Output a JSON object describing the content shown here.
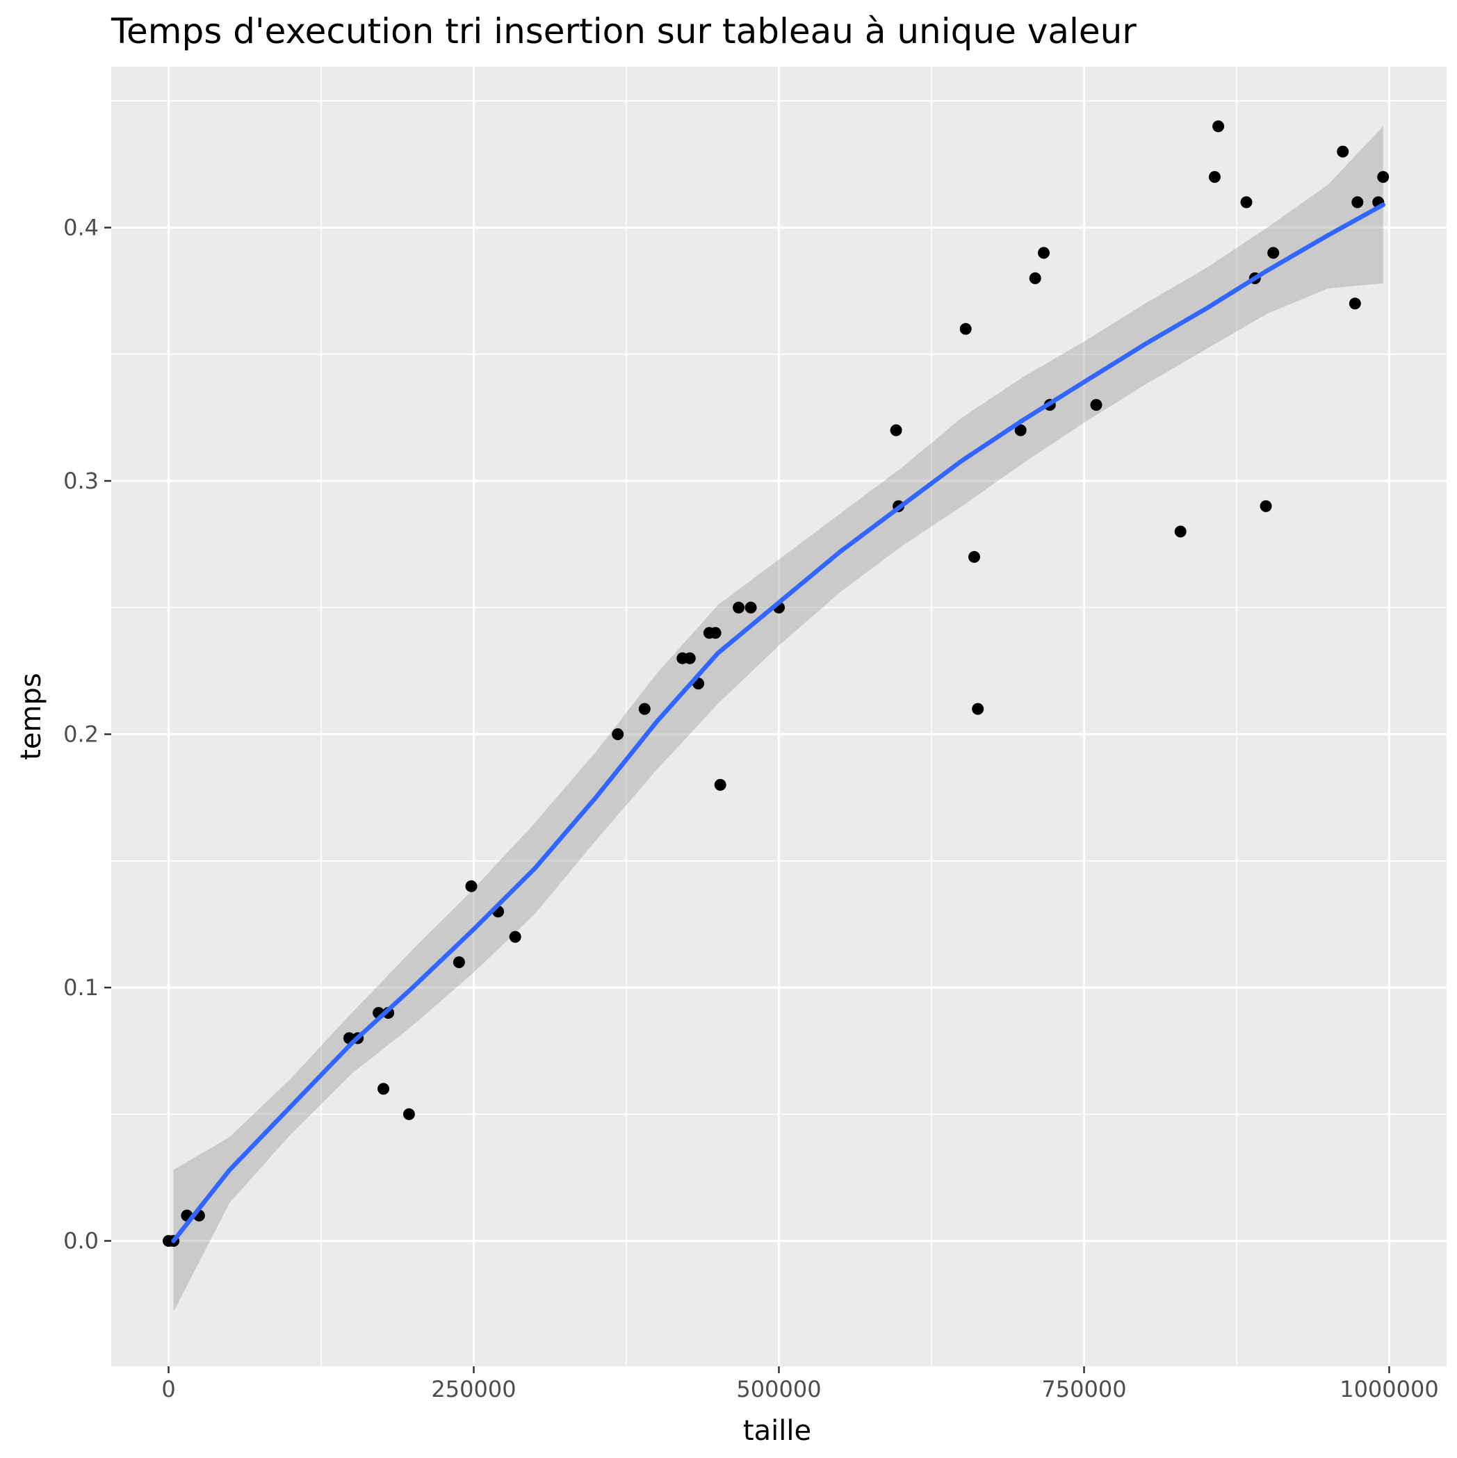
{
  "chart_data": {
    "type": "scatter",
    "title": "Temps d'execution tri insertion sur tableau à unique valeur",
    "xlabel": "taille",
    "ylabel": "temps",
    "xlim": [
      -47000,
      1047000
    ],
    "ylim": [
      -0.0495,
      0.4635
    ],
    "x_ticks": [
      0,
      250000,
      500000,
      750000,
      1000000
    ],
    "x_tick_labels": [
      "0",
      "250000",
      "500000",
      "750000",
      "1000000"
    ],
    "y_ticks": [
      0.0,
      0.1,
      0.2,
      0.3,
      0.4
    ],
    "y_tick_labels": [
      "0.0",
      "0.1",
      "0.2",
      "0.3",
      "0.4"
    ],
    "grid": true,
    "legend": "none",
    "colors": {
      "panel_background": "#ebebeb",
      "grid": "#ffffff",
      "points": "#000000",
      "smooth_line": "#3366ff",
      "confidence_band": "#999999"
    },
    "series": [
      {
        "kind": "points",
        "x": [
          0,
          4000,
          15000,
          25000,
          148000,
          155000,
          172000,
          176000,
          180000,
          197000,
          238000,
          248000,
          270000,
          284000,
          368000,
          390000,
          421000,
          427000,
          434000,
          443000,
          448000,
          452000,
          467000,
          477000,
          500000,
          596000,
          598000,
          653000,
          660000,
          663000,
          698000,
          710000,
          717000,
          722000,
          760000,
          829000,
          857000,
          860000,
          883000,
          890000,
          899000,
          905000,
          962000,
          972000,
          974000,
          991000,
          995000
        ],
        "y": [
          0.0,
          0.0,
          0.01,
          0.01,
          0.08,
          0.08,
          0.09,
          0.06,
          0.09,
          0.05,
          0.11,
          0.14,
          0.13,
          0.12,
          0.2,
          0.21,
          0.23,
          0.23,
          0.22,
          0.24,
          0.24,
          0.18,
          0.25,
          0.25,
          0.25,
          0.32,
          0.29,
          0.36,
          0.27,
          0.21,
          0.32,
          0.38,
          0.39,
          0.33,
          0.33,
          0.28,
          0.42,
          0.44,
          0.41,
          0.38,
          0.29,
          0.39,
          0.43,
          0.37,
          0.41,
          0.41,
          0.42
        ]
      },
      {
        "kind": "smooth",
        "x": [
          4000,
          50000,
          100000,
          150000,
          200000,
          250000,
          300000,
          350000,
          400000,
          450000,
          500000,
          550000,
          600000,
          650000,
          700000,
          750000,
          800000,
          850000,
          900000,
          950000,
          995000
        ],
        "y": [
          0.0,
          0.028,
          0.053,
          0.078,
          0.1,
          0.123,
          0.147,
          0.175,
          0.205,
          0.232,
          0.252,
          0.272,
          0.29,
          0.308,
          0.324,
          0.339,
          0.354,
          0.368,
          0.383,
          0.397,
          0.409
        ],
        "lower": [
          -0.028,
          0.015,
          0.042,
          0.066,
          0.085,
          0.106,
          0.129,
          0.158,
          0.186,
          0.212,
          0.235,
          0.256,
          0.274,
          0.29,
          0.307,
          0.323,
          0.338,
          0.352,
          0.366,
          0.376,
          0.378
        ],
        "upper": [
          0.028,
          0.041,
          0.064,
          0.09,
          0.115,
          0.139,
          0.165,
          0.193,
          0.224,
          0.251,
          0.269,
          0.287,
          0.305,
          0.325,
          0.341,
          0.355,
          0.37,
          0.384,
          0.4,
          0.417,
          0.44
        ]
      }
    ]
  }
}
